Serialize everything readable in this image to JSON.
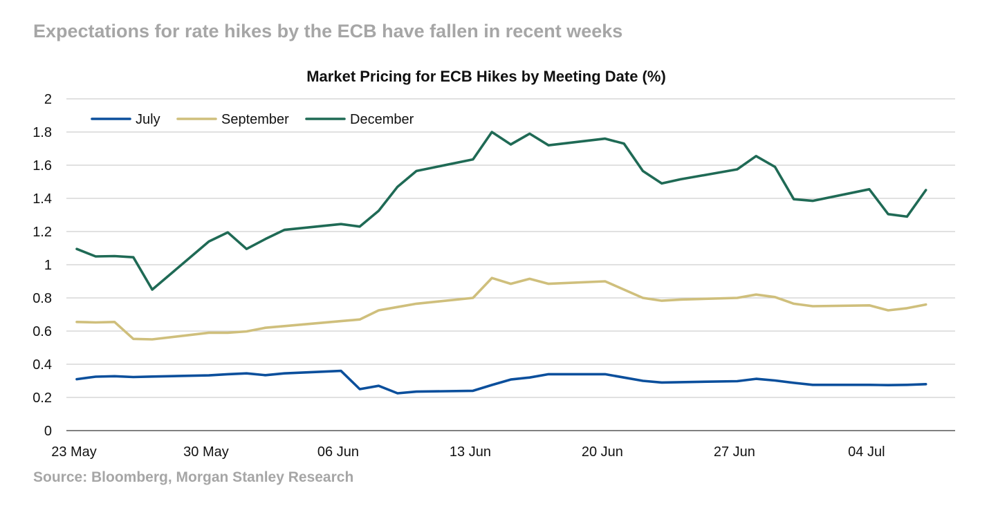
{
  "header": {
    "headline": "Expectations for rate hikes by the ECB have fallen in recent weeks"
  },
  "footer": {
    "source": "Source: Bloomberg, Morgan Stanley Research"
  },
  "chart_data": {
    "type": "line",
    "title": "Market Pricing for ECB Hikes by Meeting Date (%)",
    "xlabel": "",
    "ylabel": "",
    "ylim": [
      0,
      2
    ],
    "y_ticks": [
      0,
      0.2,
      0.4,
      0.6,
      0.8,
      1,
      1.2,
      1.4,
      1.6,
      1.8,
      2
    ],
    "y_tick_labels": [
      "0",
      "0.2",
      "0.4",
      "0.6",
      "0.8",
      "1",
      "1.2",
      "1.4",
      "1.6",
      "1.8",
      "2"
    ],
    "x_ticks": [
      "2022-05-23",
      "2022-05-30",
      "2022-06-06",
      "2022-06-13",
      "2022-06-20",
      "2022-06-27",
      "2022-07-04"
    ],
    "x_tick_labels": [
      "23 May",
      "30 May",
      "06 Jun",
      "13 Jun",
      "20 Jun",
      "27 Jun",
      "04 Jul"
    ],
    "xlim": [
      "2022-05-23",
      "2022-07-08"
    ],
    "grid": "horizontal",
    "legend_position": "top-left",
    "x": [
      "2022-05-23",
      "2022-05-24",
      "2022-05-25",
      "2022-05-26",
      "2022-05-27",
      "2022-05-30",
      "2022-05-31",
      "2022-06-01",
      "2022-06-02",
      "2022-06-03",
      "2022-06-06",
      "2022-06-07",
      "2022-06-08",
      "2022-06-09",
      "2022-06-10",
      "2022-06-13",
      "2022-06-14",
      "2022-06-15",
      "2022-06-16",
      "2022-06-17",
      "2022-06-20",
      "2022-06-21",
      "2022-06-22",
      "2022-06-23",
      "2022-06-24",
      "2022-06-27",
      "2022-06-28",
      "2022-06-29",
      "2022-06-30",
      "2022-07-01",
      "2022-07-04",
      "2022-07-05",
      "2022-07-06",
      "2022-07-07"
    ],
    "series": [
      {
        "name": "July",
        "color": "#0b4f9c",
        "values": [
          0.31,
          0.325,
          0.328,
          0.323,
          0.326,
          0.333,
          0.34,
          0.345,
          0.334,
          0.345,
          0.36,
          0.25,
          0.27,
          0.225,
          0.235,
          0.24,
          0.275,
          0.308,
          0.32,
          0.34,
          0.34,
          0.32,
          0.3,
          0.29,
          0.292,
          0.298,
          0.312,
          0.302,
          0.288,
          0.276,
          0.276,
          0.274,
          0.276,
          0.28
        ]
      },
      {
        "name": "September",
        "color": "#cfbf7c",
        "values": [
          0.655,
          0.652,
          0.655,
          0.553,
          0.55,
          0.59,
          0.59,
          0.598,
          0.62,
          0.63,
          0.66,
          0.67,
          0.725,
          0.745,
          0.765,
          0.8,
          0.92,
          0.885,
          0.915,
          0.885,
          0.9,
          0.85,
          0.8,
          0.783,
          0.79,
          0.8,
          0.82,
          0.805,
          0.765,
          0.75,
          0.755,
          0.725,
          0.738,
          0.76
        ]
      },
      {
        "name": "December",
        "color": "#1f6a55",
        "values": [
          1.095,
          1.05,
          1.052,
          1.045,
          0.85,
          1.14,
          1.195,
          1.095,
          1.155,
          1.21,
          1.245,
          1.23,
          1.325,
          1.47,
          1.565,
          1.635,
          1.8,
          1.725,
          1.79,
          1.72,
          1.76,
          1.73,
          1.565,
          1.49,
          1.515,
          1.575,
          1.655,
          1.59,
          1.395,
          1.385,
          1.455,
          1.305,
          1.29,
          1.45
        ]
      }
    ]
  }
}
